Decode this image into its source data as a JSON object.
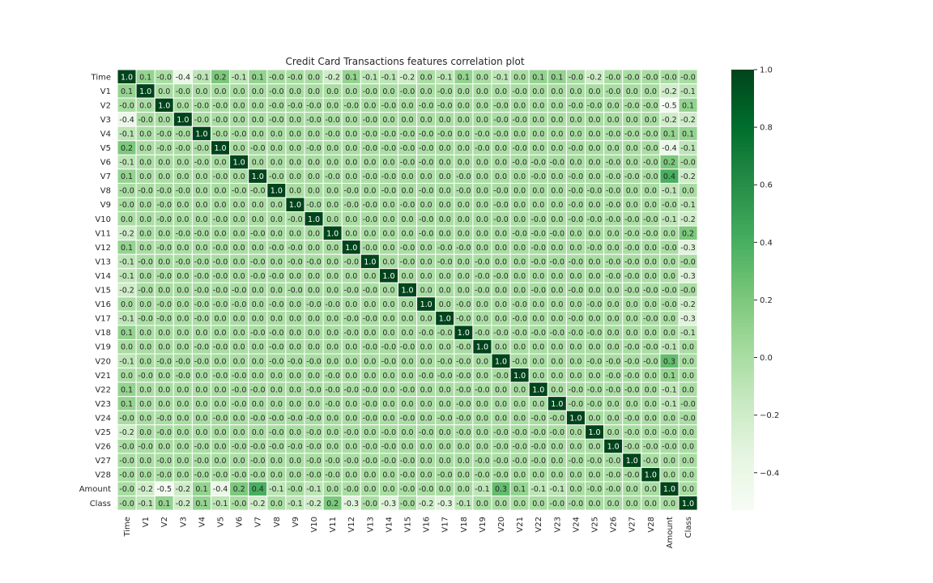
{
  "chart_data": {
    "type": "heatmap",
    "title": "Credit Card Transactions features correlation plot",
    "xlabel": "",
    "ylabel": "",
    "labels": [
      "Time",
      "V1",
      "V2",
      "V3",
      "V4",
      "V5",
      "V6",
      "V7",
      "V8",
      "V9",
      "V10",
      "V11",
      "V12",
      "V13",
      "V14",
      "V15",
      "V16",
      "V17",
      "V18",
      "V19",
      "V20",
      "V21",
      "V22",
      "V23",
      "V24",
      "V25",
      "V26",
      "V27",
      "V28",
      "Amount",
      "Class"
    ],
    "values": [
      [
        1.0,
        0.1,
        -0.0,
        -0.4,
        -0.1,
        0.2,
        -0.1,
        0.1,
        -0.0,
        -0.0,
        0.0,
        -0.2,
        0.1,
        -0.1,
        -0.1,
        -0.2,
        0.0,
        -0.1,
        0.1,
        0.0,
        -0.1,
        0.0,
        0.1,
        0.1,
        -0.0,
        -0.2,
        -0.0,
        -0.0,
        -0.0,
        -0.0,
        -0.0
      ],
      [
        0.1,
        1.0,
        0.0,
        -0.0,
        0.0,
        0.0,
        0.0,
        0.0,
        -0.0,
        0.0,
        0.0,
        0.0,
        0.0,
        -0.0,
        0.0,
        -0.0,
        0.0,
        -0.0,
        0.0,
        0.0,
        0.0,
        -0.0,
        0.0,
        0.0,
        0.0,
        0.0,
        -0.0,
        0.0,
        0.0,
        -0.2,
        -0.1
      ],
      [
        -0.0,
        0.0,
        1.0,
        0.0,
        -0.0,
        -0.0,
        0.0,
        0.0,
        -0.0,
        -0.0,
        -0.0,
        0.0,
        -0.0,
        0.0,
        -0.0,
        0.0,
        -0.0,
        -0.0,
        0.0,
        0.0,
        -0.0,
        0.0,
        0.0,
        0.0,
        -0.0,
        -0.0,
        0.0,
        -0.0,
        -0.0,
        -0.5,
        0.1
      ],
      [
        -0.4,
        -0.0,
        0.0,
        1.0,
        -0.0,
        -0.0,
        0.0,
        0.0,
        -0.0,
        0.0,
        -0.0,
        -0.0,
        0.0,
        -0.0,
        0.0,
        0.0,
        0.0,
        0.0,
        0.0,
        0.0,
        -0.0,
        -0.0,
        0.0,
        0.0,
        0.0,
        0.0,
        0.0,
        0.0,
        0.0,
        -0.2,
        -0.2
      ],
      [
        -0.1,
        0.0,
        -0.0,
        -0.0,
        1.0,
        -0.0,
        -0.0,
        0.0,
        0.0,
        0.0,
        0.0,
        -0.0,
        0.0,
        -0.0,
        -0.0,
        -0.0,
        -0.0,
        -0.0,
        0.0,
        -0.0,
        -0.0,
        0.0,
        0.0,
        0.0,
        0.0,
        0.0,
        -0.0,
        -0.0,
        -0.0,
        0.1,
        0.1
      ],
      [
        0.2,
        0.0,
        -0.0,
        -0.0,
        -0.0,
        1.0,
        0.0,
        -0.0,
        0.0,
        0.0,
        -0.0,
        0.0,
        0.0,
        -0.0,
        -0.0,
        -0.0,
        -0.0,
        0.0,
        0.0,
        -0.0,
        0.0,
        -0.0,
        0.0,
        0.0,
        -0.0,
        0.0,
        0.0,
        0.0,
        -0.0,
        -0.4,
        -0.1
      ],
      [
        -0.1,
        0.0,
        0.0,
        0.0,
        -0.0,
        0.0,
        1.0,
        0.0,
        0.0,
        0.0,
        0.0,
        0.0,
        0.0,
        0.0,
        0.0,
        -0.0,
        -0.0,
        0.0,
        0.0,
        0.0,
        0.0,
        -0.0,
        -0.0,
        -0.0,
        0.0,
        0.0,
        -0.0,
        0.0,
        -0.0,
        0.2,
        -0.0
      ],
      [
        0.1,
        0.0,
        0.0,
        0.0,
        0.0,
        -0.0,
        0.0,
        1.0,
        -0.0,
        0.0,
        0.0,
        -0.0,
        0.0,
        -0.0,
        -0.0,
        0.0,
        0.0,
        0.0,
        -0.0,
        0.0,
        0.0,
        0.0,
        -0.0,
        0.0,
        -0.0,
        0.0,
        -0.0,
        -0.0,
        -0.0,
        0.4,
        -0.2
      ],
      [
        -0.0,
        -0.0,
        -0.0,
        -0.0,
        0.0,
        0.0,
        -0.0,
        -0.0,
        1.0,
        0.0,
        0.0,
        0.0,
        -0.0,
        0.0,
        -0.0,
        0.0,
        -0.0,
        0.0,
        -0.0,
        0.0,
        -0.0,
        0.0,
        0.0,
        0.0,
        -0.0,
        -0.0,
        -0.0,
        0.0,
        0.0,
        -0.1,
        0.0
      ],
      [
        -0.0,
        0.0,
        -0.0,
        0.0,
        0.0,
        0.0,
        0.0,
        0.0,
        0.0,
        1.0,
        -0.0,
        0.0,
        -0.0,
        -0.0,
        0.0,
        -0.0,
        0.0,
        0.0,
        0.0,
        0.0,
        -0.0,
        0.0,
        0.0,
        0.0,
        -0.0,
        0.0,
        -0.0,
        0.0,
        0.0,
        -0.0,
        -0.1
      ],
      [
        0.0,
        0.0,
        -0.0,
        0.0,
        0.0,
        -0.0,
        0.0,
        0.0,
        0.0,
        -0.0,
        1.0,
        0.0,
        0.0,
        -0.0,
        0.0,
        0.0,
        -0.0,
        0.0,
        0.0,
        0.0,
        -0.0,
        0.0,
        -0.0,
        0.0,
        -0.0,
        -0.0,
        -0.0,
        -0.0,
        -0.0,
        -0.1,
        -0.2
      ],
      [
        -0.2,
        0.0,
        0.0,
        -0.0,
        -0.0,
        0.0,
        0.0,
        -0.0,
        0.0,
        0.0,
        0.0,
        1.0,
        0.0,
        0.0,
        0.0,
        0.0,
        -0.0,
        0.0,
        0.0,
        0.0,
        0.0,
        -0.0,
        -0.0,
        -0.0,
        0.0,
        0.0,
        0.0,
        -0.0,
        -0.0,
        0.0,
        0.2
      ],
      [
        0.1,
        0.0,
        -0.0,
        0.0,
        0.0,
        -0.0,
        0.0,
        0.0,
        -0.0,
        -0.0,
        0.0,
        0.0,
        1.0,
        -0.0,
        0.0,
        -0.0,
        0.0,
        -0.0,
        -0.0,
        0.0,
        0.0,
        0.0,
        -0.0,
        0.0,
        0.0,
        -0.0,
        0.0,
        -0.0,
        0.0,
        -0.0,
        -0.3
      ],
      [
        -0.1,
        -0.0,
        0.0,
        -0.0,
        -0.0,
        -0.0,
        0.0,
        -0.0,
        0.0,
        -0.0,
        -0.0,
        0.0,
        -0.0,
        1.0,
        0.0,
        -0.0,
        0.0,
        -0.0,
        0.0,
        -0.0,
        0.0,
        0.0,
        -0.0,
        -0.0,
        -0.0,
        0.0,
        -0.0,
        -0.0,
        0.0,
        0.0,
        -0.0
      ],
      [
        -0.1,
        0.0,
        -0.0,
        0.0,
        -0.0,
        -0.0,
        0.0,
        -0.0,
        -0.0,
        0.0,
        0.0,
        0.0,
        0.0,
        0.0,
        1.0,
        0.0,
        0.0,
        0.0,
        0.0,
        -0.0,
        -0.0,
        0.0,
        0.0,
        0.0,
        0.0,
        0.0,
        -0.0,
        -0.0,
        0.0,
        0.0,
        -0.3
      ],
      [
        -0.2,
        -0.0,
        0.0,
        0.0,
        -0.0,
        -0.0,
        -0.0,
        0.0,
        0.0,
        -0.0,
        0.0,
        0.0,
        -0.0,
        -0.0,
        0.0,
        1.0,
        0.0,
        0.0,
        0.0,
        -0.0,
        0.0,
        0.0,
        -0.0,
        0.0,
        -0.0,
        0.0,
        0.0,
        -0.0,
        -0.0,
        -0.0,
        -0.0
      ],
      [
        0.0,
        0.0,
        -0.0,
        0.0,
        -0.0,
        -0.0,
        -0.0,
        0.0,
        -0.0,
        0.0,
        -0.0,
        -0.0,
        0.0,
        0.0,
        0.0,
        0.0,
        1.0,
        0.0,
        -0.0,
        0.0,
        0.0,
        -0.0,
        0.0,
        0.0,
        0.0,
        -0.0,
        0.0,
        0.0,
        0.0,
        -0.0,
        -0.2
      ],
      [
        -0.1,
        -0.0,
        -0.0,
        0.0,
        -0.0,
        0.0,
        0.0,
        0.0,
        0.0,
        0.0,
        0.0,
        0.0,
        -0.0,
        -0.0,
        0.0,
        0.0,
        0.0,
        1.0,
        -0.0,
        0.0,
        0.0,
        -0.0,
        0.0,
        0.0,
        -0.0,
        0.0,
        0.0,
        0.0,
        -0.0,
        0.0,
        -0.3
      ],
      [
        0.1,
        0.0,
        0.0,
        0.0,
        0.0,
        0.0,
        0.0,
        -0.0,
        -0.0,
        0.0,
        0.0,
        0.0,
        -0.0,
        0.0,
        0.0,
        0.0,
        -0.0,
        -0.0,
        1.0,
        -0.0,
        -0.0,
        -0.0,
        -0.0,
        -0.0,
        -0.0,
        -0.0,
        0.0,
        0.0,
        0.0,
        0.0,
        -0.1
      ],
      [
        0.0,
        0.0,
        0.0,
        0.0,
        -0.0,
        -0.0,
        0.0,
        0.0,
        -0.0,
        0.0,
        0.0,
        0.0,
        0.0,
        -0.0,
        -0.0,
        -0.0,
        0.0,
        0.0,
        -0.0,
        1.0,
        0.0,
        0.0,
        0.0,
        0.0,
        0.0,
        0.0,
        0.0,
        -0.0,
        -0.0,
        -0.1,
        0.0
      ],
      [
        -0.1,
        0.0,
        -0.0,
        -0.0,
        -0.0,
        0.0,
        0.0,
        0.0,
        -0.0,
        -0.0,
        -0.0,
        0.0,
        0.0,
        0.0,
        -0.0,
        0.0,
        0.0,
        -0.0,
        -0.0,
        0.0,
        1.0,
        -0.0,
        0.0,
        0.0,
        0.0,
        -0.0,
        -0.0,
        -0.0,
        -0.0,
        0.3,
        0.0
      ],
      [
        0.0,
        -0.0,
        0.0,
        -0.0,
        0.0,
        -0.0,
        -0.0,
        0.0,
        0.0,
        0.0,
        0.0,
        -0.0,
        0.0,
        0.0,
        0.0,
        0.0,
        -0.0,
        -0.0,
        -0.0,
        0.0,
        -0.0,
        1.0,
        0.0,
        0.0,
        0.0,
        0.0,
        -0.0,
        -0.0,
        0.0,
        0.1,
        0.0
      ],
      [
        0.1,
        0.0,
        0.0,
        0.0,
        0.0,
        0.0,
        -0.0,
        -0.0,
        0.0,
        0.0,
        -0.0,
        -0.0,
        -0.0,
        -0.0,
        0.0,
        -0.0,
        0.0,
        0.0,
        -0.0,
        -0.0,
        0.0,
        0.0,
        1.0,
        0.0,
        -0.0,
        -0.0,
        -0.0,
        -0.0,
        0.0,
        -0.1,
        0.0
      ],
      [
        0.1,
        0.0,
        0.0,
        0.0,
        0.0,
        0.0,
        -0.0,
        0.0,
        0.0,
        0.0,
        0.0,
        -0.0,
        0.0,
        -0.0,
        0.0,
        0.0,
        0.0,
        0.0,
        -0.0,
        0.0,
        0.0,
        0.0,
        0.0,
        1.0,
        -0.0,
        -0.0,
        0.0,
        0.0,
        0.0,
        -0.1,
        -0.0
      ],
      [
        -0.0,
        0.0,
        -0.0,
        0.0,
        0.0,
        -0.0,
        0.0,
        -0.0,
        -0.0,
        -0.0,
        -0.0,
        0.0,
        0.0,
        -0.0,
        0.0,
        -0.0,
        0.0,
        -0.0,
        -0.0,
        0.0,
        0.0,
        0.0,
        -0.0,
        -0.0,
        1.0,
        0.0,
        0.0,
        -0.0,
        0.0,
        0.0,
        -0.0
      ],
      [
        -0.2,
        0.0,
        -0.0,
        0.0,
        0.0,
        0.0,
        0.0,
        0.0,
        -0.0,
        0.0,
        -0.0,
        0.0,
        -0.0,
        0.0,
        -0.0,
        0.0,
        -0.0,
        0.0,
        -0.0,
        0.0,
        -0.0,
        -0.0,
        -0.0,
        -0.0,
        0.0,
        1.0,
        0.0,
        -0.0,
        0.0,
        -0.0,
        0.0
      ],
      [
        -0.0,
        -0.0,
        0.0,
        0.0,
        -0.0,
        0.0,
        -0.0,
        -0.0,
        -0.0,
        -0.0,
        -0.0,
        0.0,
        0.0,
        -0.0,
        -0.0,
        0.0,
        0.0,
        0.0,
        0.0,
        0.0,
        -0.0,
        -0.0,
        -0.0,
        0.0,
        0.0,
        0.0,
        1.0,
        -0.0,
        -0.0,
        -0.0,
        0.0
      ],
      [
        -0.0,
        0.0,
        -0.0,
        0.0,
        -0.0,
        0.0,
        0.0,
        -0.0,
        0.0,
        0.0,
        -0.0,
        -0.0,
        -0.0,
        -0.0,
        -0.0,
        -0.0,
        0.0,
        0.0,
        0.0,
        -0.0,
        -0.0,
        -0.0,
        -0.0,
        0.0,
        -0.0,
        -0.0,
        -0.0,
        1.0,
        -0.0,
        0.0,
        0.0
      ],
      [
        -0.0,
        0.0,
        -0.0,
        0.0,
        -0.0,
        -0.0,
        -0.0,
        -0.0,
        0.0,
        0.0,
        -0.0,
        -0.0,
        0.0,
        0.0,
        0.0,
        -0.0,
        0.0,
        -0.0,
        0.0,
        -0.0,
        -0.0,
        0.0,
        0.0,
        0.0,
        0.0,
        0.0,
        -0.0,
        -0.0,
        1.0,
        0.0,
        0.0
      ],
      [
        -0.0,
        -0.2,
        -0.5,
        -0.2,
        0.1,
        -0.4,
        0.2,
        0.4,
        -0.1,
        -0.0,
        -0.1,
        0.0,
        -0.0,
        0.0,
        0.0,
        -0.0,
        -0.0,
        0.0,
        0.0,
        -0.1,
        0.3,
        0.1,
        -0.1,
        -0.1,
        0.0,
        -0.0,
        -0.0,
        0.0,
        0.0,
        1.0,
        0.0
      ],
      [
        -0.0,
        -0.1,
        0.1,
        -0.2,
        0.1,
        -0.1,
        -0.0,
        -0.2,
        0.0,
        -0.1,
        -0.2,
        0.2,
        -0.3,
        -0.0,
        -0.3,
        -0.0,
        -0.2,
        -0.3,
        -0.1,
        0.0,
        0.0,
        0.0,
        0.0,
        -0.0,
        -0.0,
        0.0,
        0.0,
        0.0,
        0.0,
        0.0,
        1.0
      ]
    ],
    "vmin": -0.53,
    "vmax": 1.0,
    "colorbar_ticks": [
      1.0,
      0.8,
      0.6,
      0.4,
      0.2,
      0.0,
      -0.2,
      -0.4
    ],
    "colorbar_tick_labels": [
      "1.0",
      "0.8",
      "0.6",
      "0.4",
      "0.2",
      "0.0",
      "−0.2",
      "−0.4"
    ],
    "colormap": "Greens",
    "cell_border_color": "#ffffff",
    "annotated": true,
    "grid": false,
    "legend": "colorbar-right"
  }
}
